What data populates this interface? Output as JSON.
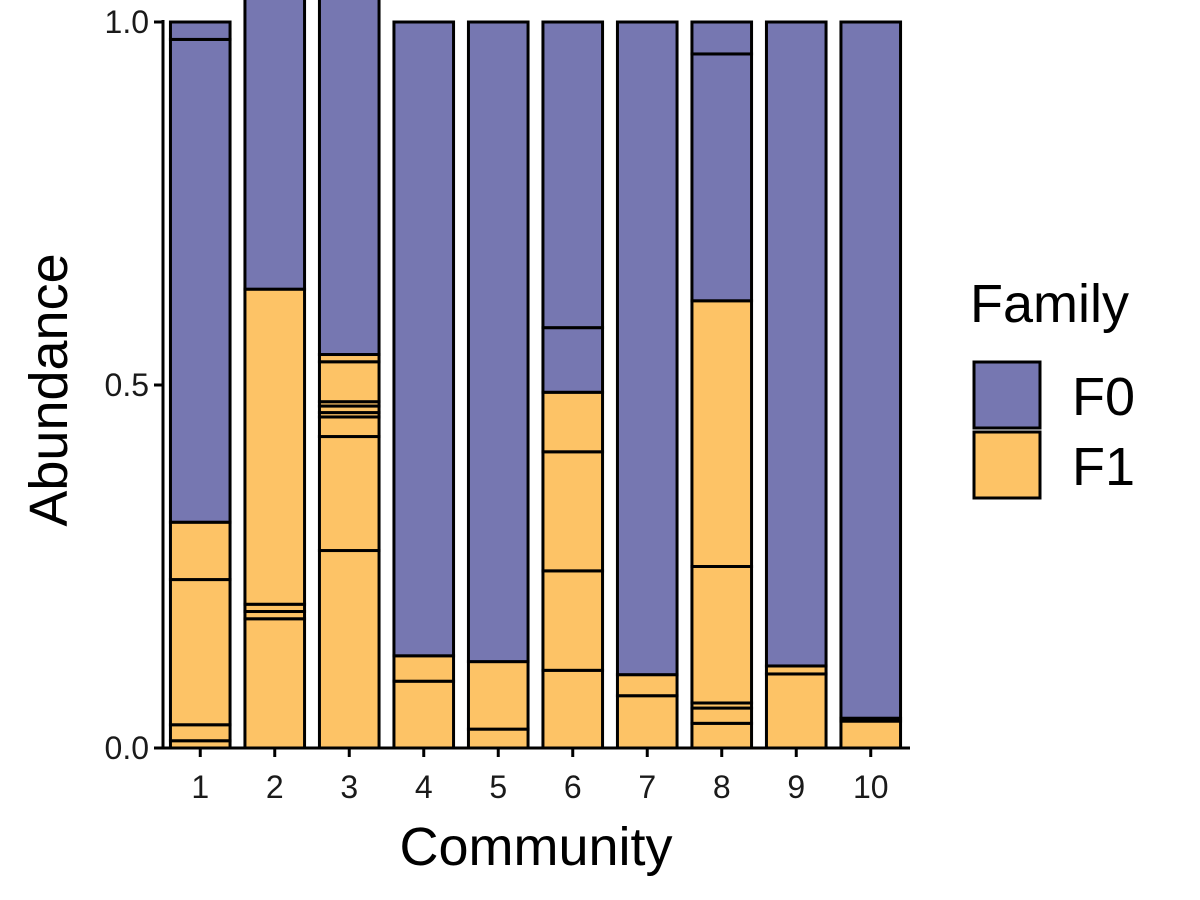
{
  "chart_data": {
    "type": "bar",
    "stacked": true,
    "xlabel": "Community",
    "ylabel": "Abundance",
    "ylim": [
      0,
      1
    ],
    "yticks": [
      "0.0",
      "0.5",
      "1.0"
    ],
    "categories": [
      "1",
      "2",
      "3",
      "4",
      "5",
      "6",
      "7",
      "8",
      "9",
      "10"
    ],
    "legend": {
      "title": "Family",
      "placement": "right",
      "entries": [
        {
          "name": "F0",
          "color": "#7677b1"
        },
        {
          "name": "F1",
          "color": "#fdc366"
        }
      ]
    },
    "segments": [
      {
        "community": "1",
        "family": "F1",
        "values": [
          0.01,
          0.022,
          0.2,
          0.079
        ]
      },
      {
        "community": "1",
        "family": "F0",
        "values": [
          0.665,
          0.024
        ]
      },
      {
        "community": "2",
        "family": "F1",
        "values": [
          0.178,
          0.01,
          0.01,
          0.434
        ]
      },
      {
        "community": "2",
        "family": "F0",
        "values": [
          0.443
        ]
      },
      {
        "community": "3",
        "family": "F1",
        "values": [
          0.272,
          0.157,
          0.027,
          0.006,
          0.009,
          0.006,
          0.055,
          0.01
        ]
      },
      {
        "community": "3",
        "family": "F0",
        "values": [
          0.53
        ]
      },
      {
        "community": "4",
        "family": "F1",
        "values": [
          0.092,
          0.035
        ]
      },
      {
        "community": "4",
        "family": "F0",
        "values": [
          0.873
        ]
      },
      {
        "community": "5",
        "family": "F1",
        "values": [
          0.026,
          0.093
        ]
      },
      {
        "community": "5",
        "family": "F0",
        "values": [
          0.881
        ]
      },
      {
        "community": "6",
        "family": "F1",
        "values": [
          0.107,
          0.137,
          0.164,
          0.082
        ]
      },
      {
        "community": "6",
        "family": "F0",
        "values": [
          0.089,
          0.421
        ]
      },
      {
        "community": "7",
        "family": "F1",
        "values": [
          0.072,
          0.029
        ]
      },
      {
        "community": "7",
        "family": "F0",
        "values": [
          0.899
        ]
      },
      {
        "community": "8",
        "family": "F1",
        "values": [
          0.034,
          0.021,
          0.007,
          0.188,
          0.366
        ]
      },
      {
        "community": "8",
        "family": "F0",
        "values": [
          0.34,
          0.044
        ]
      },
      {
        "community": "9",
        "family": "F1",
        "values": [
          0.102,
          0.011
        ]
      },
      {
        "community": "9",
        "family": "F0",
        "values": [
          0.887
        ]
      },
      {
        "community": "10",
        "family": "F1",
        "values": [
          0.037,
          0.004
        ]
      },
      {
        "community": "10",
        "family": "F0",
        "values": [
          0.959
        ]
      }
    ]
  }
}
